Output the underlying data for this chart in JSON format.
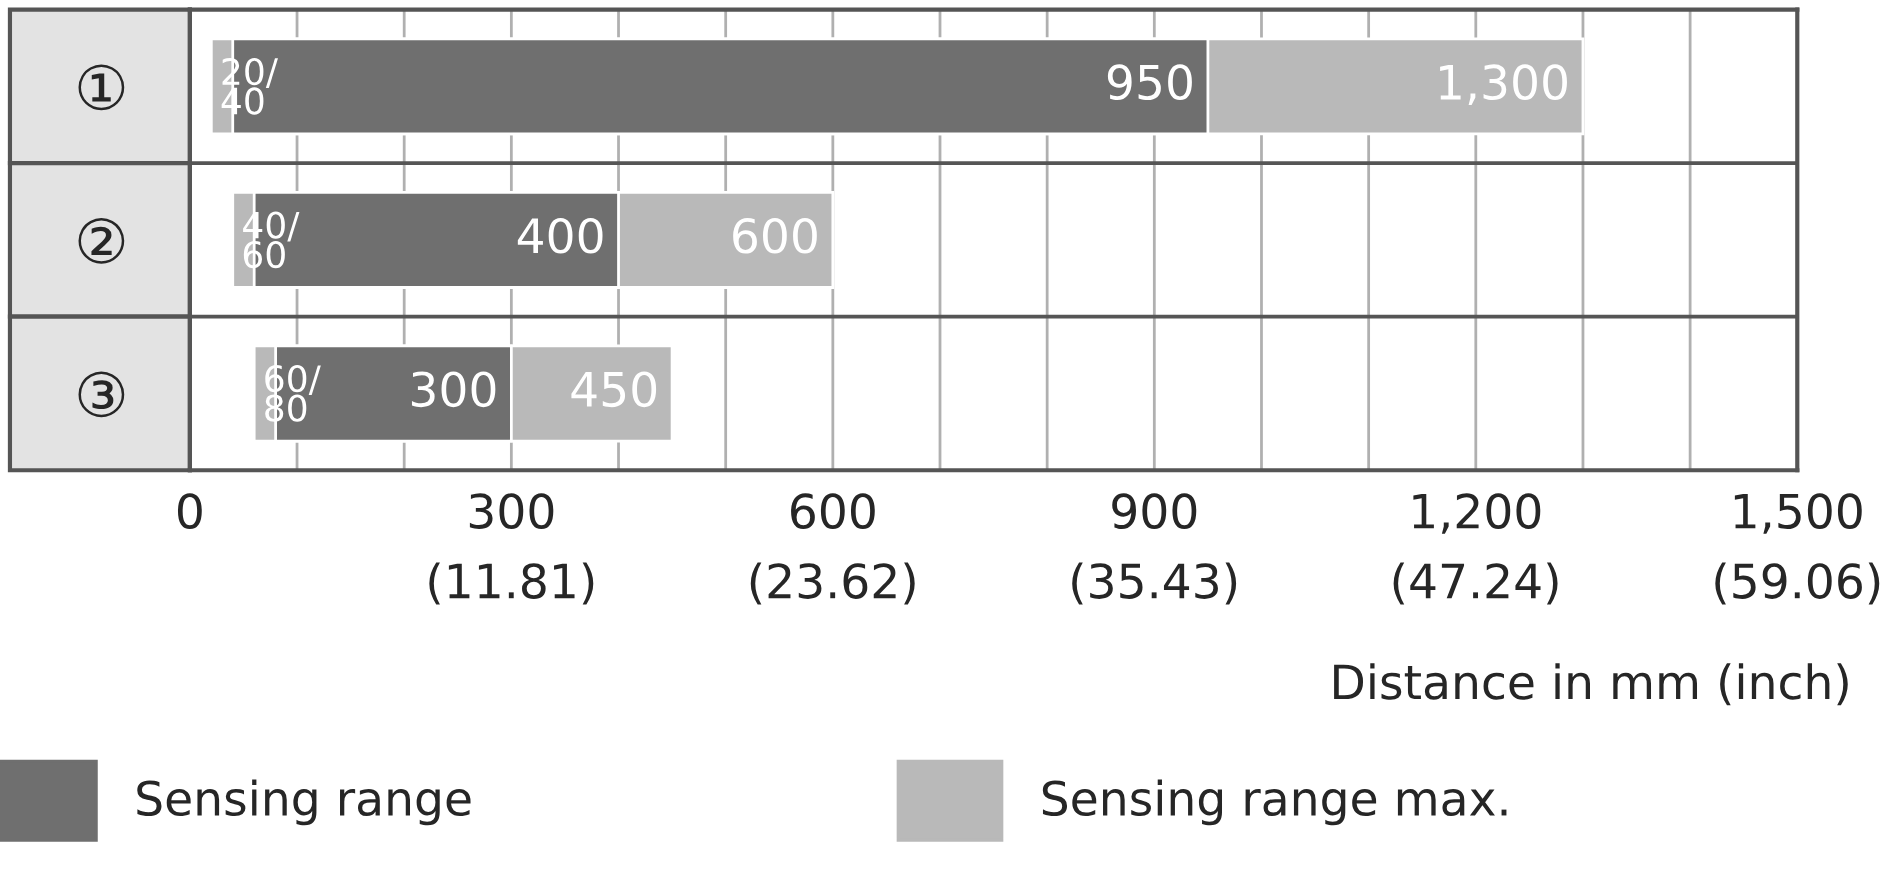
{
  "chart_data": {
    "type": "bar",
    "orientation": "horizontal",
    "categories": [
      "①",
      "②",
      "③"
    ],
    "series": [
      {
        "name": "Sensing range max.",
        "color": "#b9b9b9",
        "base": [
          20,
          40,
          60
        ],
        "values": [
          1280,
          560,
          390
        ],
        "value_labels": [
          "1,300",
          "600",
          "450"
        ]
      },
      {
        "name": "Sensing range",
        "color": "#6f6f6f",
        "base": [
          40,
          60,
          80
        ],
        "values": [
          910,
          340,
          220
        ],
        "value_labels": [
          "950",
          "400",
          "300"
        ]
      }
    ],
    "annotations": [
      {
        "text": "20/40",
        "x": 20,
        "y": "①"
      },
      {
        "text": "40/60",
        "x": 40,
        "y": "②"
      },
      {
        "text": "60/80",
        "x": 60,
        "y": "③"
      }
    ],
    "x2lim": [
      0,
      59.06
    ],
    "x2ticks": [
      {
        "value": 11.81,
        "label": "(11.81)"
      },
      {
        "value": 23.62,
        "label": "(23.62)"
      },
      {
        "value": 35.43,
        "label": "(35.43)"
      },
      {
        "value": 47.24,
        "label": "(47.24)"
      },
      {
        "value": 59.06,
        "label": "(59.06)"
      }
    ],
    "xlim": [
      0,
      1500
    ],
    "xticks": [
      0,
      {
        "value": 100,
        "label": null
      },
      {
        "value": 200,
        "label": null
      },
      300,
      {
        "value": 400,
        "label": null
      },
      {
        "value": 500,
        "label": null
      },
      600,
      {
        "value": 700,
        "label": null
      },
      {
        "value": 800,
        "label": null
      },
      900,
      {
        "value": 1000,
        "label": null
      },
      {
        "value": 1100,
        "label": null
      },
      {
        "value": 1200,
        "label": "1,200"
      },
      {
        "value": 1300,
        "label": null
      },
      {
        "value": 1400,
        "label": null
      },
      {
        "value": 1500,
        "label": "1,500"
      }
    ],
    "xlabel": "Distance in mm (inch)",
    "grid": "x",
    "legend": "bottom"
  }
}
